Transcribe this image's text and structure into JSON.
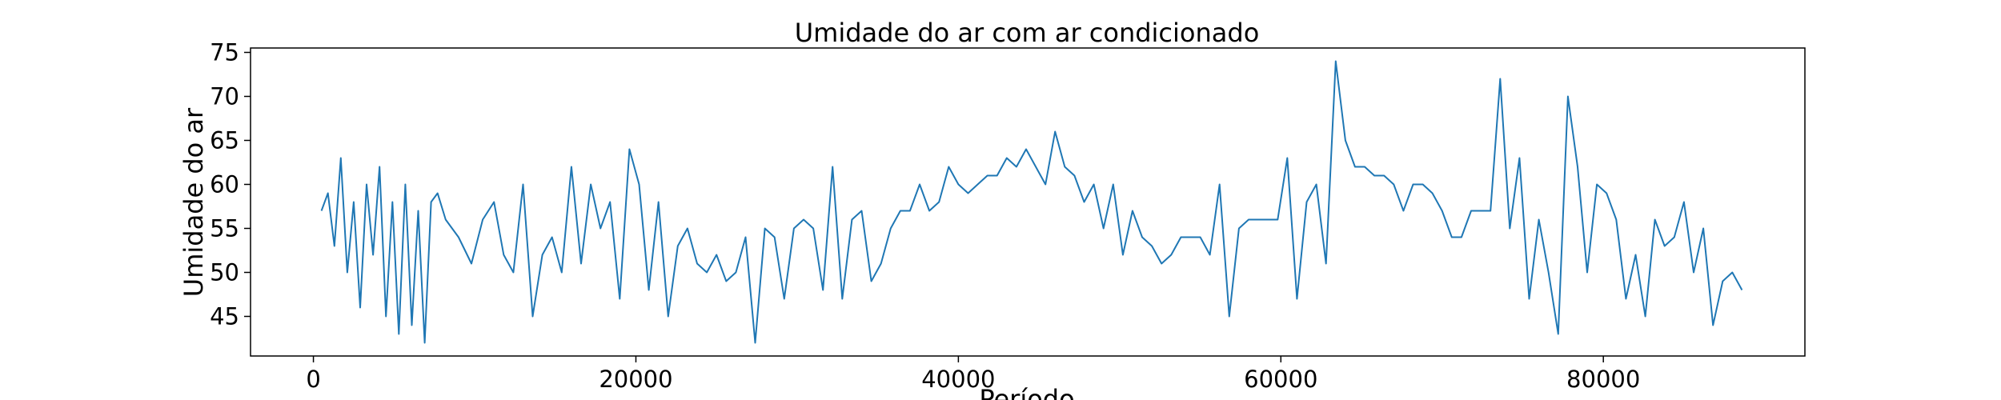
{
  "chart_data": {
    "type": "line",
    "title": "Umidade do ar com ar condicionado",
    "xlabel": "Período",
    "ylabel": "Umidade do ar",
    "xlim": [
      -3900,
      92500
    ],
    "ylim": [
      40.5,
      75.5
    ],
    "xticks": [
      0,
      20000,
      40000,
      60000,
      80000
    ],
    "yticks": [
      45,
      50,
      55,
      60,
      65,
      70,
      75
    ],
    "grid": false,
    "legend": "none",
    "series": [
      {
        "color": "#1f77b4",
        "x": [
          500,
          900,
          1300,
          1700,
          2100,
          2500,
          2900,
          3300,
          3700,
          4100,
          4500,
          4900,
          5300,
          5700,
          6100,
          6500,
          6900,
          7300,
          7700,
          8200,
          9000,
          9800,
          10500,
          11200,
          11800,
          12400,
          13000,
          13600,
          14200,
          14800,
          15400,
          16000,
          16600,
          17200,
          17800,
          18400,
          19000,
          19600,
          20200,
          20800,
          21400,
          22000,
          22600,
          23200,
          23800,
          24400,
          25000,
          25600,
          26200,
          26800,
          27400,
          28000,
          28600,
          29200,
          29800,
          30400,
          31000,
          31600,
          32200,
          32800,
          33400,
          34000,
          34600,
          35200,
          35800,
          36400,
          37000,
          37600,
          38200,
          38800,
          39400,
          40000,
          40600,
          41200,
          41800,
          42400,
          43000,
          43600,
          44200,
          44800,
          45400,
          46000,
          46600,
          47200,
          47800,
          48400,
          49000,
          49600,
          50200,
          50800,
          51400,
          52000,
          52600,
          53200,
          53800,
          54400,
          55000,
          55600,
          56200,
          56800,
          57400,
          58000,
          58600,
          59200,
          59800,
          60400,
          61000,
          61600,
          62200,
          62800,
          63400,
          64000,
          64600,
          65200,
          65800,
          66400,
          67000,
          67600,
          68200,
          68800,
          69400,
          70000,
          70600,
          71200,
          71800,
          72400,
          73000,
          73600,
          74200,
          74800,
          75400,
          76000,
          76600,
          77200,
          77800,
          78400,
          79000,
          79600,
          80200,
          80800,
          81400,
          82000,
          82600,
          83200,
          83800,
          84400,
          85000,
          85600,
          86200,
          86800,
          87400,
          88000,
          88600
        ],
        "y": [
          57,
          59,
          53,
          63,
          50,
          58,
          46,
          60,
          52,
          62,
          45,
          58,
          43,
          60,
          44,
          57,
          42,
          58,
          59,
          56,
          54,
          51,
          56,
          58,
          52,
          50,
          60,
          45,
          52,
          54,
          50,
          62,
          51,
          60,
          55,
          58,
          47,
          64,
          60,
          48,
          58,
          45,
          53,
          55,
          51,
          50,
          52,
          49,
          50,
          54,
          42,
          55,
          54,
          47,
          55,
          56,
          55,
          48,
          62,
          47,
          56,
          57,
          49,
          51,
          55,
          57,
          57,
          60,
          57,
          58,
          62,
          60,
          59,
          60,
          61,
          61,
          63,
          62,
          64,
          62,
          60,
          66,
          62,
          61,
          58,
          60,
          55,
          60,
          52,
          57,
          54,
          53,
          51,
          52,
          54,
          54,
          54,
          52,
          60,
          45,
          55,
          56,
          56,
          56,
          56,
          63,
          47,
          58,
          60,
          51,
          74,
          65,
          62,
          62,
          61,
          61,
          60,
          57,
          60,
          60,
          59,
          57,
          54,
          54,
          57,
          57,
          57,
          72,
          55,
          63,
          47,
          56,
          50,
          43,
          70,
          62,
          50,
          60,
          59,
          56,
          47,
          52,
          45,
          56,
          53,
          54,
          58,
          50,
          55,
          44,
          49,
          50,
          48
        ]
      }
    ]
  }
}
